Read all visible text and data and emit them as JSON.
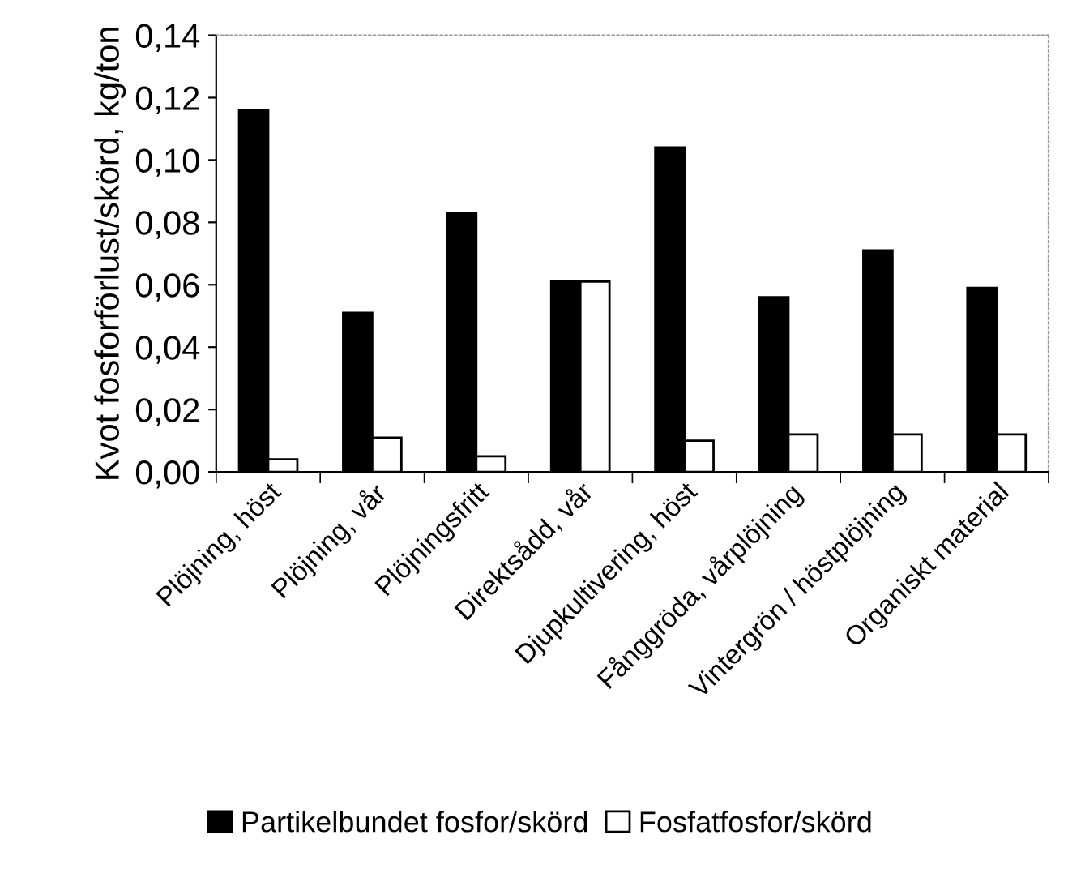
{
  "chart_data": {
    "type": "bar",
    "ylabel": "Kvot fosforförlust/skörd, kg/ton",
    "categories": [
      "Plöjning, höst",
      "Plöjning, vår",
      "Plöjningsfritt",
      "Direktsådd, vår",
      "Djupkultivering, höst",
      "Fånggröda, vårplöjning",
      "Vintergrön / höstplöjning",
      "Organiskt material"
    ],
    "series": [
      {
        "name": "Partikelbundet fosfor/skörd",
        "color": "#000000",
        "values": [
          0.116,
          0.051,
          0.083,
          0.061,
          0.104,
          0.056,
          0.071,
          0.059
        ]
      },
      {
        "name": "Fosfatfosfor/skörd",
        "color": "#ffffff",
        "values": [
          0.004,
          0.011,
          0.005,
          0.061,
          0.01,
          0.012,
          0.012,
          0.012
        ]
      }
    ],
    "ylim": [
      0,
      0.14
    ],
    "yticks": [
      {
        "value": 0,
        "label": "0,00"
      },
      {
        "value": 0.02,
        "label": "0,02"
      },
      {
        "value": 0.04,
        "label": "0,04"
      },
      {
        "value": 0.06,
        "label": "0,06"
      },
      {
        "value": 0.08,
        "label": "0,08"
      },
      {
        "value": 0.1,
        "label": "0,10"
      },
      {
        "value": 0.12,
        "label": "0,12"
      },
      {
        "value": 0.14,
        "label": "0,14"
      }
    ],
    "grid": false,
    "legend": "bottom"
  }
}
